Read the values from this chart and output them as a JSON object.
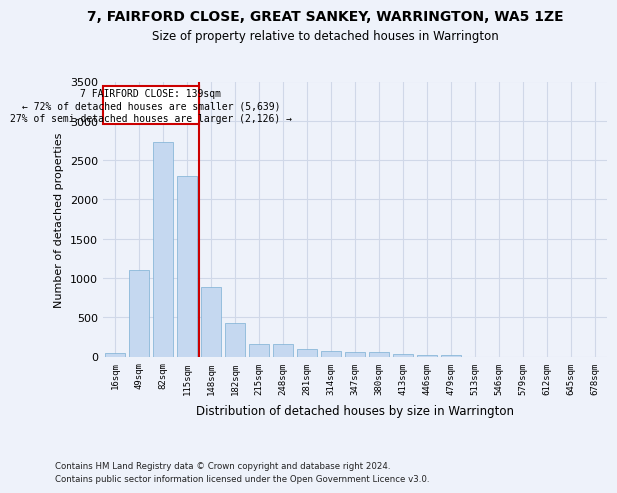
{
  "title": "7, FAIRFORD CLOSE, GREAT SANKEY, WARRINGTON, WA5 1ZE",
  "subtitle": "Size of property relative to detached houses in Warrington",
  "xlabel": "Distribution of detached houses by size in Warrington",
  "ylabel": "Number of detached properties",
  "footer_line1": "Contains HM Land Registry data © Crown copyright and database right 2024.",
  "footer_line2": "Contains public sector information licensed under the Open Government Licence v3.0.",
  "bar_color": "#c5d8f0",
  "bar_edgecolor": "#7bafd4",
  "grid_color": "#d0d8e8",
  "annotation_box_color": "#cc0000",
  "vline_color": "#cc0000",
  "annotation_text_line1": "7 FAIRFORD CLOSE: 139sqm",
  "annotation_text_line2": "← 72% of detached houses are smaller (5,639)",
  "annotation_text_line3": "27% of semi-detached houses are larger (2,126) →",
  "categories": [
    "16sqm",
    "49sqm",
    "82sqm",
    "115sqm",
    "148sqm",
    "182sqm",
    "215sqm",
    "248sqm",
    "281sqm",
    "314sqm",
    "347sqm",
    "380sqm",
    "413sqm",
    "446sqm",
    "479sqm",
    "513sqm",
    "546sqm",
    "579sqm",
    "612sqm",
    "645sqm",
    "678sqm"
  ],
  "values": [
    50,
    1100,
    2730,
    2300,
    880,
    430,
    165,
    165,
    90,
    70,
    55,
    55,
    35,
    25,
    25,
    0,
    0,
    0,
    0,
    0,
    0
  ],
  "ylim": [
    0,
    3500
  ],
  "yticks": [
    0,
    500,
    1000,
    1500,
    2000,
    2500,
    3000,
    3500
  ],
  "vline_x_index": 3.5,
  "background_color": "#eef2fa",
  "plot_background": "#eef2fa"
}
